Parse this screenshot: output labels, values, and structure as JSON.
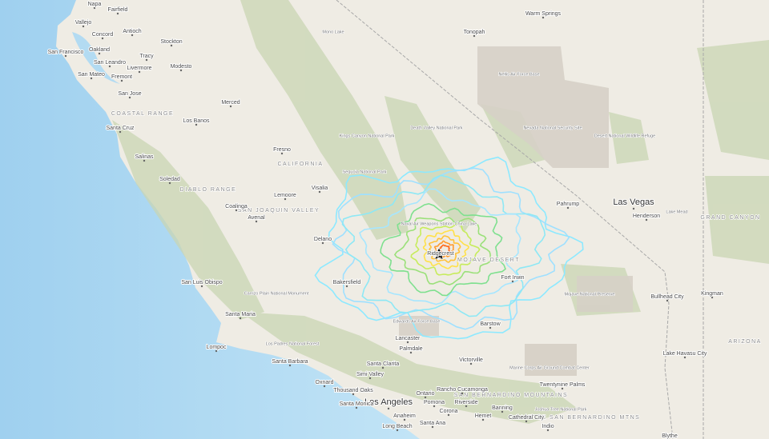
{
  "labels": {
    "cities": [
      "Napa",
      "Fairfield",
      "Vallejo",
      "Concord",
      "Antioch",
      "San Francisco",
      "Oakland",
      "Stockton",
      "Tracy",
      "San Leandro",
      "Modesto",
      "Livermore",
      "San Mateo",
      "Fremont",
      "San Jose",
      "Merced",
      "Los Banos",
      "Santa Cruz",
      "Salinas",
      "Fresno",
      "Soledad",
      "Visalia",
      "Lemoore",
      "Coalinga",
      "Avenal",
      "Delano",
      "Bakersfield",
      "Ridgecrest",
      "San Luis Obispo",
      "Santa Maria",
      "Lompoc",
      "Santa Barbara",
      "Oxnard",
      "Thousand Oaks",
      "Simi Valley",
      "Santa Clarita",
      "Los Angeles",
      "Santa Monica",
      "Anaheim",
      "Long Beach",
      "Santa Ana",
      "Lancaster",
      "Palmdale",
      "Victorville",
      "Barstow",
      "Ontario",
      "Pomona",
      "Rancho Cucamonga",
      "Riverside",
      "Corona",
      "Hemet",
      "Banning",
      "Cathedral City",
      "Indio",
      "Twentynine Palms",
      "Fort Irwin",
      "Tonopah",
      "Warm Springs",
      "Pahrump",
      "Las Vegas",
      "Henderson",
      "Bullhead City",
      "Kingman",
      "Lake Havasu City",
      "Blythe"
    ],
    "regions": [
      "COASTAL RANGE",
      "CALIFORNIA",
      "DIABLO RANGE",
      "SAN JOAQUIN VALLEY",
      "MOJAVE DESERT",
      "SAN BERNARDINO MOUNTAINS",
      "LITTLE SAN BERNARDINO MTNS",
      "ARIZONA",
      "GRAND CANYON"
    ],
    "areas": [
      "Nellis Air Force Base",
      "Nevada National Security Site",
      "Death Valley National Park",
      "Desert National Wildlife Refuge",
      "Edwards Air Force Base",
      "Mojave National Preserve",
      "Sequoia National Park",
      "Kings Canyon National Park",
      "Carrizo Plain National Monument",
      "Los Padres National Forest",
      "Naval Air Weapons Station China Lake",
      "Marine Corps Air Ground Combat Center",
      "Joshua Tree National Park",
      "Mono Lake",
      "Lake Mead"
    ]
  }
}
